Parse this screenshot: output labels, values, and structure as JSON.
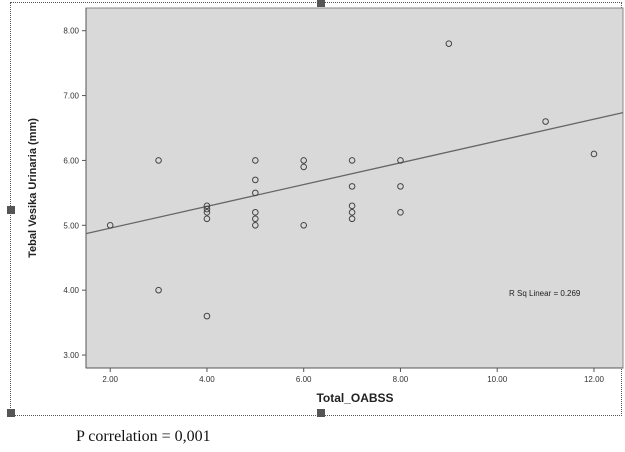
{
  "chart_data": {
    "type": "scatter",
    "xlabel": "Total_OABSS",
    "ylabel": "Tebal Vesika Urinaria (mm)",
    "xlim": [
      1.5,
      12.6
    ],
    "ylim": [
      2.8,
      8.35
    ],
    "x_ticks": [
      2,
      4,
      6,
      8,
      10,
      12
    ],
    "x_tick_labels": [
      "2.00",
      "4.00",
      "6.00",
      "8.00",
      "10.00",
      "12.00"
    ],
    "y_ticks": [
      3,
      4,
      5,
      6,
      7,
      8
    ],
    "y_tick_labels": [
      "3.00",
      "4.00",
      "5.00",
      "6.00",
      "7.00",
      "8.00"
    ],
    "points": [
      {
        "x": 2,
        "y": 5.0
      },
      {
        "x": 3,
        "y": 6.0
      },
      {
        "x": 3,
        "y": 4.0
      },
      {
        "x": 4,
        "y": 5.3
      },
      {
        "x": 4,
        "y": 5.25
      },
      {
        "x": 4,
        "y": 5.2
      },
      {
        "x": 4,
        "y": 5.1
      },
      {
        "x": 4,
        "y": 3.6
      },
      {
        "x": 5,
        "y": 6.0
      },
      {
        "x": 5,
        "y": 5.7
      },
      {
        "x": 5,
        "y": 5.5
      },
      {
        "x": 5,
        "y": 5.2
      },
      {
        "x": 5,
        "y": 5.1
      },
      {
        "x": 5,
        "y": 5.0
      },
      {
        "x": 6,
        "y": 6.0
      },
      {
        "x": 6,
        "y": 5.9
      },
      {
        "x": 6,
        "y": 5.0
      },
      {
        "x": 7,
        "y": 6.0
      },
      {
        "x": 7,
        "y": 5.6
      },
      {
        "x": 7,
        "y": 5.3
      },
      {
        "x": 7,
        "y": 5.2
      },
      {
        "x": 7,
        "y": 5.1
      },
      {
        "x": 8,
        "y": 6.0
      },
      {
        "x": 8,
        "y": 5.6
      },
      {
        "x": 8,
        "y": 5.2
      },
      {
        "x": 9,
        "y": 7.8
      },
      {
        "x": 11,
        "y": 6.6
      },
      {
        "x": 12,
        "y": 6.1
      }
    ],
    "fit_line": {
      "type": "linear",
      "intercept": 4.62,
      "slope": 0.168
    },
    "annotation": "R Sq Linear = 0.269",
    "grid": false,
    "colors": {
      "plot_background": "#d9d9d9",
      "marker": "#444444",
      "fit_line": "#666666"
    }
  },
  "footnote": "P correlation = 0,001"
}
